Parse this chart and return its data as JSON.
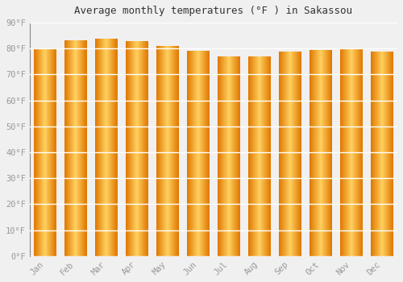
{
  "months": [
    "Jan",
    "Feb",
    "Mar",
    "Apr",
    "May",
    "Jun",
    "Jul",
    "Aug",
    "Sep",
    "Oct",
    "Nov",
    "Dec"
  ],
  "values": [
    80.1,
    83.1,
    83.8,
    82.9,
    81.1,
    79.0,
    77.0,
    77.0,
    78.7,
    79.5,
    80.1,
    78.8
  ],
  "title": "Average monthly temperatures (°F ) in Sakassou",
  "ylim": [
    0,
    90
  ],
  "ytick_step": 10,
  "bar_color_center": "#FFD060",
  "bar_color_edge": "#E07800",
  "background_color": "#F0F0F0",
  "grid_color": "#FFFFFF",
  "tick_label_color": "#999999",
  "title_color": "#333333",
  "bar_width": 0.72,
  "num_strips": 80
}
